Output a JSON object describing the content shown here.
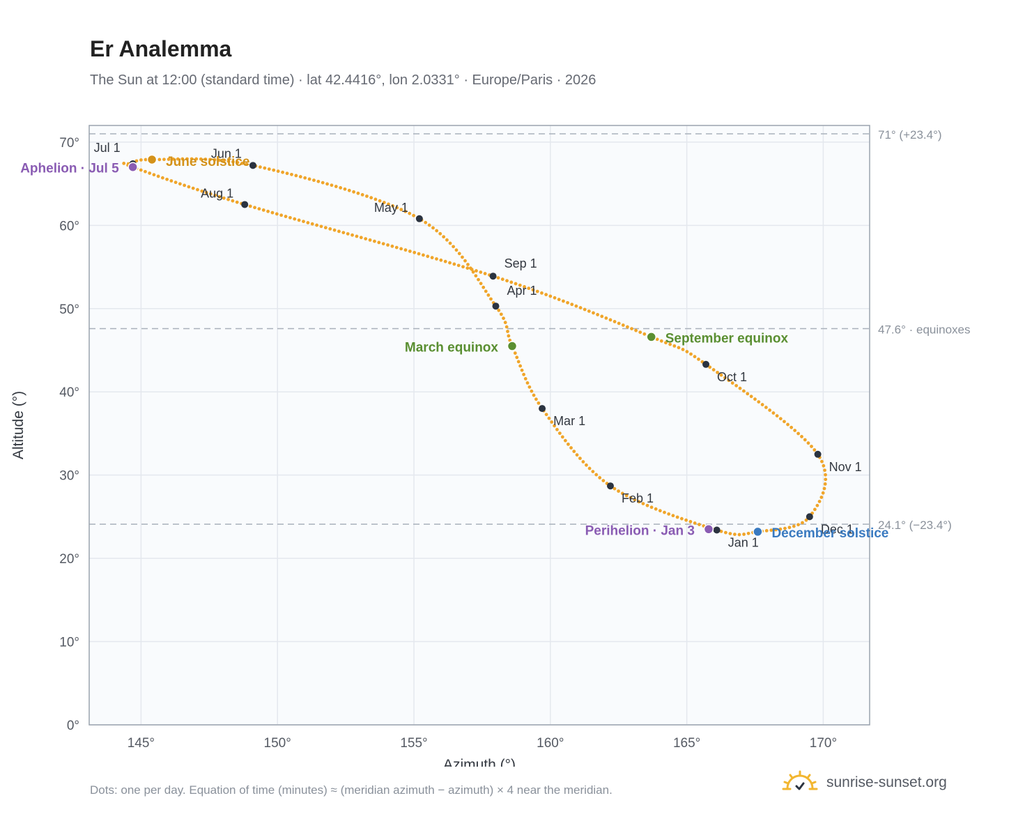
{
  "chart_data": {
    "type": "scatter",
    "title": "Er Analemma",
    "subtitle": "The Sun at 12:00 (standard time) · lat 42.4416°, lon 2.0331° · Europe/Paris · 2026",
    "xlabel": "Azimuth (°)",
    "ylabel": "Altitude (°)",
    "xlim": [
      143.1,
      171.7
    ],
    "ylim": [
      0,
      72
    ],
    "x_ticks": [
      "145°",
      "150°",
      "155°",
      "160°",
      "165°",
      "170°"
    ],
    "x_tick_values": [
      145,
      150,
      155,
      160,
      165,
      170
    ],
    "y_ticks": [
      "0°",
      "10°",
      "20°",
      "30°",
      "40°",
      "50°",
      "60°",
      "70°"
    ],
    "y_tick_values": [
      0,
      10,
      20,
      30,
      40,
      50,
      60,
      70
    ],
    "grid": true,
    "reference_lines": [
      {
        "y": 71.0,
        "label": "71° (+23.4°)"
      },
      {
        "y": 47.6,
        "label": "47.6° · equinoxes"
      },
      {
        "y": 24.1,
        "label": "24.1° (−23.4°)"
      }
    ],
    "path_color": "#f0a52a",
    "path_keypoints": [
      {
        "date": "Jan 1",
        "az": 166.1,
        "alt": 23.4
      },
      {
        "date": "Feb 1",
        "az": 162.2,
        "alt": 28.7
      },
      {
        "date": "Mar 1",
        "az": 159.7,
        "alt": 38.0
      },
      {
        "date": "Mar 20",
        "az": 158.6,
        "alt": 45.5
      },
      {
        "date": "Apr 1",
        "az": 158.0,
        "alt": 50.3
      },
      {
        "date": "May 1",
        "az": 155.2,
        "alt": 60.8
      },
      {
        "date": "Jun 1",
        "az": 149.1,
        "alt": 67.2
      },
      {
        "date": "Jun 21",
        "az": 145.4,
        "alt": 67.9
      },
      {
        "date": "Jul 1",
        "az": 144.7,
        "alt": 67.4
      },
      {
        "date": "Jul 5",
        "az": 144.7,
        "alt": 67.0
      },
      {
        "date": "Aug 1",
        "az": 148.8,
        "alt": 62.5
      },
      {
        "date": "Sep 1",
        "az": 157.9,
        "alt": 53.9
      },
      {
        "date": "Sep 23",
        "az": 163.7,
        "alt": 46.6
      },
      {
        "date": "Oct 1",
        "az": 165.7,
        "alt": 43.3
      },
      {
        "date": "Nov 1",
        "az": 169.8,
        "alt": 32.5
      },
      {
        "date": "Dec 1",
        "az": 169.5,
        "alt": 25.0
      },
      {
        "date": "Dec 21",
        "az": 167.6,
        "alt": 23.2
      }
    ],
    "month_markers": [
      {
        "label": "Jan 1",
        "az": 166.1,
        "alt": 23.4
      },
      {
        "label": "Feb 1",
        "az": 162.2,
        "alt": 28.7
      },
      {
        "label": "Mar 1",
        "az": 159.7,
        "alt": 38.0
      },
      {
        "label": "Apr 1",
        "az": 158.0,
        "alt": 50.3
      },
      {
        "label": "May 1",
        "az": 155.2,
        "alt": 60.8
      },
      {
        "label": "Jun 1",
        "az": 149.1,
        "alt": 67.2
      },
      {
        "label": "Jul 1",
        "az": 144.7,
        "alt": 67.4
      },
      {
        "label": "Aug 1",
        "az": 148.8,
        "alt": 62.5
      },
      {
        "label": "Sep 1",
        "az": 157.9,
        "alt": 53.9
      },
      {
        "label": "Oct 1",
        "az": 165.7,
        "alt": 43.3
      },
      {
        "label": "Nov 1",
        "az": 169.8,
        "alt": 32.5
      },
      {
        "label": "Dec 1",
        "az": 169.5,
        "alt": 25.0
      }
    ],
    "events": [
      {
        "label": "June solstice",
        "az": 145.4,
        "alt": 67.9,
        "color": "#d4921a"
      },
      {
        "label": "Aphelion · Jul 5",
        "az": 144.7,
        "alt": 67.0,
        "color": "#8a5cb3"
      },
      {
        "label": "March equinox",
        "az": 158.6,
        "alt": 45.5,
        "color": "#5a8f32"
      },
      {
        "label": "September equinox",
        "az": 163.7,
        "alt": 46.6,
        "color": "#5a8f32"
      },
      {
        "label": "Perihelion · Jan 3",
        "az": 165.8,
        "alt": 23.5,
        "color": "#8a5cb3"
      },
      {
        "label": "December solstice",
        "az": 167.6,
        "alt": 23.2,
        "color": "#3a7ac0"
      }
    ]
  },
  "footnote": "Dots: one per day. Equation of time (minutes) ≈ (meridian azimuth − azimuth) × 4 near the meridian.",
  "brand": {
    "name": "sunrise-sunset.org",
    "logo": "sun-logo-icon"
  }
}
